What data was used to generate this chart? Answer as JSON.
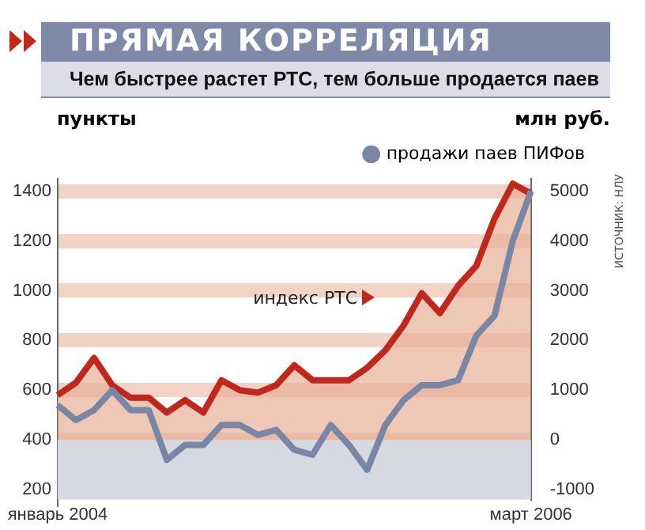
{
  "chart_data": {
    "type": "area",
    "title": "ПРЯМАЯ КОРРЕЛЯЦИЯ",
    "subtitle": "Чем быстрее растет РТС, тем больше продается паев",
    "ylabel": "пункты",
    "y2label": "млн руб.",
    "categories": [
      "январь 2004",
      null,
      null,
      null,
      null,
      null,
      null,
      null,
      null,
      null,
      null,
      null,
      null,
      null,
      null,
      null,
      null,
      null,
      null,
      null,
      null,
      null,
      null,
      null,
      null,
      null,
      "март 2006"
    ],
    "series": [
      {
        "name": "индекс РТС",
        "type": "area",
        "color": "#c0281e",
        "values": [
          580,
          630,
          730,
          620,
          570,
          570,
          510,
          560,
          510,
          640,
          600,
          590,
          620,
          700,
          640,
          640,
          640,
          690,
          760,
          860,
          990,
          910,
          1020,
          1100,
          1290,
          1430,
          1390
        ]
      },
      {
        "name": "продажи паев ПИФов",
        "type": "line",
        "axis": "y2",
        "color": "#7a86a6",
        "values": [
          700,
          400,
          600,
          1000,
          600,
          600,
          -400,
          -100,
          -100,
          300,
          300,
          100,
          200,
          -200,
          -300,
          300,
          -100,
          -600,
          300,
          800,
          1100,
          1100,
          1200,
          2100,
          2500,
          4000,
          5000
        ]
      }
    ],
    "ylim": [
      160,
      1450
    ],
    "yticks": [
      200,
      400,
      600,
      800,
      1000,
      1200,
      1400
    ],
    "y2lim": [
      -1200,
      5250
    ],
    "y2ticks": [
      -1000,
      0,
      1000,
      2000,
      3000,
      4000,
      5000
    ],
    "bands": [
      {
        "axis": "y2",
        "from": -1200,
        "to": 0,
        "color": "#d6d8e2"
      }
    ],
    "grid": "y",
    "legend": "top right",
    "marker": "none",
    "line_style": "solid",
    "annotations": [
      "ИСТОЧНИК: НЛУ"
    ]
  }
}
